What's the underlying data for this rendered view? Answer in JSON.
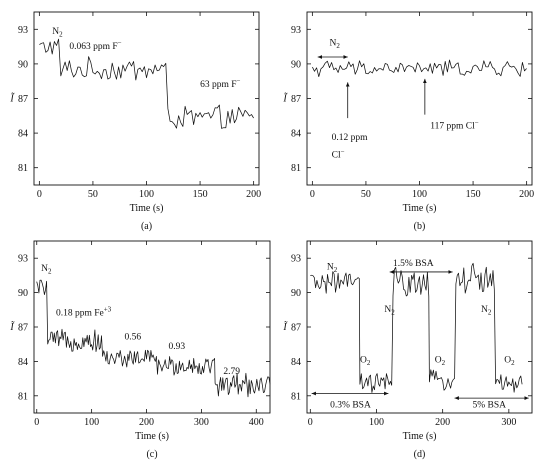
{
  "chart_data": [
    {
      "id": "a",
      "type": "line",
      "caption": "(a)",
      "xlabel": "Time (s)",
      "ylabel": "Ĩ",
      "xlim": [
        -5,
        205
      ],
      "ylim": [
        79.5,
        94.5
      ],
      "xticks": [
        0,
        50,
        100,
        150,
        200
      ],
      "yticks": [
        81,
        84,
        87,
        90,
        93
      ],
      "series": [
        {
          "segments": [
            {
              "x0": 0,
              "x1": 20,
              "mean": 91.5,
              "amp": 0.7
            },
            {
              "x0": 20,
              "x1": 120,
              "mean": 89.5,
              "amp": 0.9
            },
            {
              "x0": 120,
              "x1": 200,
              "mean": 85.3,
              "amp": 0.9
            }
          ]
        }
      ],
      "annotations": [
        {
          "text": "N",
          "sub": "2",
          "sup": "",
          "x": 12,
          "y": 92.6
        },
        {
          "text": "0.063 ppm F",
          "sub": "",
          "sup": "−",
          "x": 28,
          "y": 91.3
        },
        {
          "text": "63 ppm F",
          "sub": "",
          "sup": "−",
          "x": 150,
          "y": 88.0
        }
      ],
      "arrows": []
    },
    {
      "id": "b",
      "type": "line",
      "caption": "(b)",
      "xlabel": "Time (s)",
      "ylabel": "Ĩ",
      "xlim": [
        -5,
        205
      ],
      "ylim": [
        79.5,
        94.5
      ],
      "xticks": [
        0,
        50,
        100,
        150,
        200
      ],
      "yticks": [
        81,
        84,
        87,
        90,
        93
      ],
      "series": [
        {
          "segments": [
            {
              "x0": 0,
              "x1": 200,
              "mean": 89.6,
              "amp": 0.6
            }
          ]
        }
      ],
      "annotations": [
        {
          "text": "N",
          "sub": "2",
          "sup": "",
          "x": 16,
          "y": 91.6
        },
        {
          "text": "0.12 ppm",
          "sub": "",
          "sup": "",
          "x": 18,
          "y": 83.4
        },
        {
          "text": "Cl",
          "sub": "",
          "sup": "−",
          "x": 18,
          "y": 81.9
        },
        {
          "text": "117 ppm Cl",
          "sub": "",
          "sup": "−",
          "x": 110,
          "y": 84.4
        }
      ],
      "arrows": [
        {
          "x": 33,
          "y0": 85.3,
          "y1": 88.4,
          "double": false
        },
        {
          "x": 105,
          "y0": 85.6,
          "y1": 88.7,
          "double": false
        },
        {
          "x0": 5,
          "x1": 33,
          "y": 90.6,
          "double": true
        }
      ]
    },
    {
      "id": "c",
      "type": "line",
      "caption": "(c)",
      "xlabel": "Time (s)",
      "ylabel": "Ĩ",
      "xlim": [
        -5,
        425
      ],
      "ylim": [
        79.5,
        94.5
      ],
      "xticks": [
        0,
        100,
        200,
        300,
        400
      ],
      "yticks": [
        81,
        84,
        87,
        90,
        93
      ],
      "series": [
        {
          "segments": [
            {
              "x0": 0,
              "x1": 20,
              "mean": 90.5,
              "amp": 0.6
            },
            {
              "x0": 20,
              "x1": 120,
              "mean": 85.8,
              "amp": 0.8
            },
            {
              "x0": 120,
              "x1": 220,
              "mean": 84.3,
              "amp": 0.7
            },
            {
              "x0": 220,
              "x1": 325,
              "mean": 83.6,
              "amp": 0.8
            },
            {
              "x0": 325,
              "x1": 425,
              "mean": 82.0,
              "amp": 0.9
            }
          ]
        }
      ],
      "annotations": [
        {
          "text": "N",
          "sub": "2",
          "sup": "",
          "x": 8,
          "y": 91.9
        },
        {
          "text": "0.18 ppm Fe",
          "sub": "",
          "sup": "+3",
          "x": 35,
          "y": 88.0
        },
        {
          "text": "0.56",
          "sub": "",
          "sup": "",
          "x": 160,
          "y": 85.9
        },
        {
          "text": "0.93",
          "sub": "",
          "sup": "",
          "x": 240,
          "y": 85.1
        },
        {
          "text": "2.79",
          "sub": "",
          "sup": "",
          "x": 340,
          "y": 82.9
        }
      ],
      "arrows": []
    },
    {
      "id": "d",
      "type": "line",
      "caption": "(d)",
      "xlabel": "Time (s)",
      "ylabel": "Ĩ",
      "xlim": [
        -5,
        335
      ],
      "ylim": [
        79.5,
        94.5
      ],
      "xticks": [
        0,
        100,
        200,
        300
      ],
      "yticks": [
        81,
        84,
        87,
        90,
        93
      ],
      "series": [
        {
          "segments": [
            {
              "x0": 0,
              "x1": 75,
              "mean": 90.9,
              "amp": 0.8
            },
            {
              "x0": 75,
              "x1": 125,
              "mean": 82.1,
              "amp": 0.8
            },
            {
              "x0": 125,
              "x1": 180,
              "mean": 90.8,
              "amp": 1.2
            },
            {
              "x0": 180,
              "x1": 220,
              "mean": 82.3,
              "amp": 0.8
            },
            {
              "x0": 220,
              "x1": 280,
              "mean": 91.2,
              "amp": 1.2
            },
            {
              "x0": 280,
              "x1": 320,
              "mean": 82.0,
              "amp": 0.8
            }
          ]
        }
      ],
      "annotations": [
        {
          "text": "N",
          "sub": "2",
          "sup": "",
          "x": 25,
          "y": 92.0
        },
        {
          "text": "1.5% BSA",
          "sub": "",
          "sup": "",
          "x": 125,
          "y": 92.3
        },
        {
          "text": "N",
          "sub": "2",
          "sup": "",
          "x": 112,
          "y": 88.3
        },
        {
          "text": "N",
          "sub": "2",
          "sup": "",
          "x": 258,
          "y": 88.3
        },
        {
          "text": "O",
          "sub": "2",
          "sup": "",
          "x": 75,
          "y": 83.9
        },
        {
          "text": "O",
          "sub": "2",
          "sup": "",
          "x": 188,
          "y": 83.9
        },
        {
          "text": "O",
          "sub": "2",
          "sup": "",
          "x": 293,
          "y": 83.9
        },
        {
          "text": "0.3% BSA",
          "sub": "",
          "sup": "",
          "x": 30,
          "y": 80.0
        },
        {
          "text": "5% BSA",
          "sub": "",
          "sup": "",
          "x": 245,
          "y": 80.0
        }
      ],
      "arrows": [
        {
          "x0": 120,
          "x1": 215,
          "y0": 91.8,
          "y": 91.8,
          "double": true
        },
        {
          "x0": 2,
          "x1": 118,
          "y": 81.2,
          "double": true
        },
        {
          "x0": 218,
          "x1": 330,
          "y": 80.8,
          "double": true
        }
      ]
    }
  ]
}
